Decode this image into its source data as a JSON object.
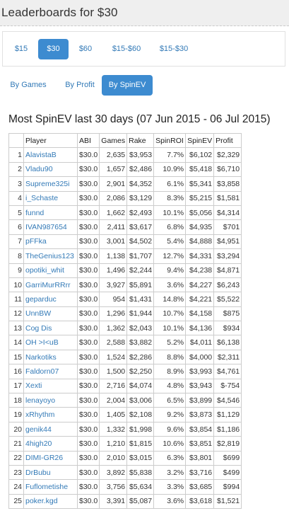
{
  "header": {
    "title": "Leaderboards for $30"
  },
  "amount_tabs": [
    {
      "label": "$15",
      "active": false
    },
    {
      "label": "$30",
      "active": true
    },
    {
      "label": "$60",
      "active": false
    },
    {
      "label": "$15-$60",
      "active": false
    },
    {
      "label": "$15-$30",
      "active": false
    }
  ],
  "sort_tabs": [
    {
      "label": "By Games",
      "active": false
    },
    {
      "label": "By Profit",
      "active": false
    },
    {
      "label": "By SpinEV",
      "active": true
    }
  ],
  "table_title": "Most SpinEV last 30 days (07 Jun 2015 - 06 Jul 2015)",
  "columns": [
    "",
    "Player",
    "ABI",
    "Games",
    "Rake",
    "SpinROI",
    "SpinEV",
    "Profit"
  ],
  "rows": [
    [
      "1",
      "AlavistaB",
      "$30.0",
      "2,635",
      "$3,953",
      "7.7%",
      "$6,102",
      "$2,329"
    ],
    [
      "2",
      "Vladu90",
      "$30.0",
      "1,657",
      "$2,486",
      "10.9%",
      "$5,418",
      "$6,710"
    ],
    [
      "3",
      "Supreme325i",
      "$30.0",
      "2,901",
      "$4,352",
      "6.1%",
      "$5,341",
      "$3,858"
    ],
    [
      "4",
      "i_Schaste",
      "$30.0",
      "2,086",
      "$3,129",
      "8.3%",
      "$5,215",
      "$1,581"
    ],
    [
      "5",
      "funnd",
      "$30.0",
      "1,662",
      "$2,493",
      "10.1%",
      "$5,056",
      "$4,314"
    ],
    [
      "6",
      "IVAN987654",
      "$30.0",
      "2,411",
      "$3,617",
      "6.8%",
      "$4,935",
      "$701"
    ],
    [
      "7",
      "pFFka",
      "$30.0",
      "3,001",
      "$4,502",
      "5.4%",
      "$4,888",
      "$4,951"
    ],
    [
      "8",
      "TheGenius123",
      "$30.0",
      "1,138",
      "$1,707",
      "12.7%",
      "$4,331",
      "$3,294"
    ],
    [
      "9",
      "opotiki_whit",
      "$30.0",
      "1,496",
      "$2,244",
      "9.4%",
      "$4,238",
      "$4,871"
    ],
    [
      "10",
      "GarriMurRRrr",
      "$30.0",
      "3,927",
      "$5,891",
      "3.6%",
      "$4,227",
      "$6,243"
    ],
    [
      "11",
      "geparduc",
      "$30.0",
      "954",
      "$1,431",
      "14.8%",
      "$4,221",
      "$5,522"
    ],
    [
      "12",
      "UnnBW",
      "$30.0",
      "1,296",
      "$1,944",
      "10.7%",
      "$4,158",
      "$875"
    ],
    [
      "13",
      "Cog Dis",
      "$30.0",
      "1,362",
      "$2,043",
      "10.1%",
      "$4,136",
      "$934"
    ],
    [
      "14",
      "OH >I<uB",
      "$30.0",
      "2,588",
      "$3,882",
      "5.2%",
      "$4,011",
      "$6,138"
    ],
    [
      "15",
      "Narkotiks",
      "$30.0",
      "1,524",
      "$2,286",
      "8.8%",
      "$4,000",
      "$2,311"
    ],
    [
      "16",
      "Faldorn07",
      "$30.0",
      "1,500",
      "$2,250",
      "8.9%",
      "$3,993",
      "$4,761"
    ],
    [
      "17",
      "Xexti",
      "$30.0",
      "2,716",
      "$4,074",
      "4.8%",
      "$3,943",
      "$-754"
    ],
    [
      "18",
      "lenayoyo",
      "$30.0",
      "2,004",
      "$3,006",
      "6.5%",
      "$3,899",
      "$4,546"
    ],
    [
      "19",
      "xRhythm",
      "$30.0",
      "1,405",
      "$2,108",
      "9.2%",
      "$3,873",
      "$1,129"
    ],
    [
      "20",
      "genik44",
      "$30.0",
      "1,332",
      "$1,998",
      "9.6%",
      "$3,854",
      "$1,186"
    ],
    [
      "21",
      "4high20",
      "$30.0",
      "1,210",
      "$1,815",
      "10.6%",
      "$3,851",
      "$2,819"
    ],
    [
      "22",
      "DIMI-GR26",
      "$30.0",
      "2,010",
      "$3,015",
      "6.3%",
      "$3,801",
      "$699"
    ],
    [
      "23",
      "DrBubu",
      "$30.0",
      "3,892",
      "$5,838",
      "3.2%",
      "$3,716",
      "$499"
    ],
    [
      "24",
      "Fuflometishe",
      "$30.0",
      "3,756",
      "$5,634",
      "3.3%",
      "$3,685",
      "$994"
    ],
    [
      "25",
      "poker.kgd",
      "$30.0",
      "3,391",
      "$5,087",
      "3.6%",
      "$3,618",
      "$1,521"
    ]
  ]
}
